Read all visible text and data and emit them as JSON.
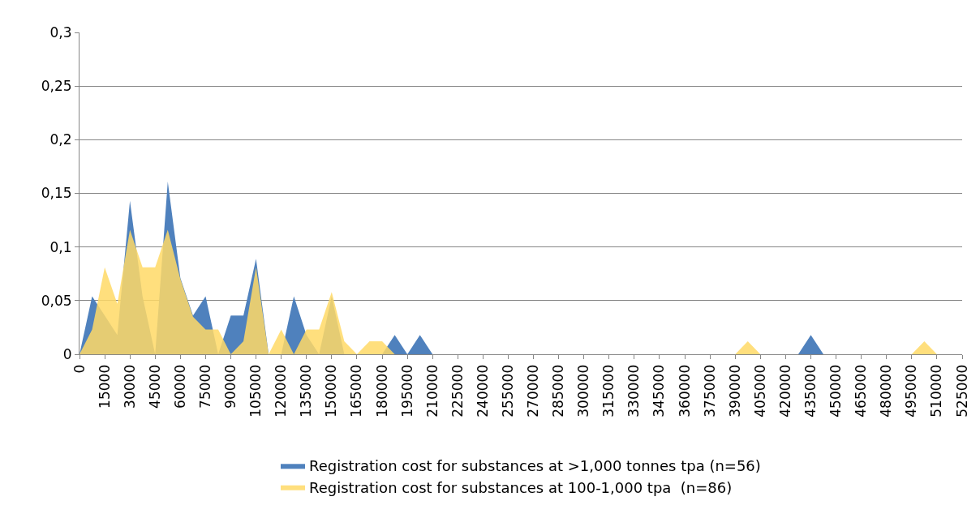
{
  "chart_data": {
    "type": "area",
    "categories": [
      "0",
      null,
      "15000",
      null,
      "30000",
      null,
      "45000",
      null,
      "60000",
      null,
      "75000",
      null,
      "90000",
      null,
      "105000",
      null,
      "120000",
      null,
      "135000",
      null,
      "150000",
      null,
      "165000",
      null,
      "180000",
      null,
      "195000",
      null,
      "210000",
      null,
      "225000",
      null,
      "240000",
      null,
      "255000",
      null,
      "270000",
      null,
      "285000",
      null,
      "300000",
      null,
      "315000",
      null,
      "330000",
      null,
      "345000",
      null,
      "360000",
      null,
      "375000",
      null,
      "390000",
      null,
      "405000",
      null,
      "420000",
      null,
      "435000",
      null,
      "450000",
      null,
      "465000",
      null,
      "480000",
      null,
      "495000",
      null,
      "510000",
      null,
      "525000"
    ],
    "series": [
      {
        "name": "Registration cost for substances at >1,000 tonnes tpa (n=56)",
        "color": "#4f81bd",
        "values": [
          0,
          0.054,
          0.036,
          0.018,
          0.143,
          0.054,
          0,
          0.161,
          0.071,
          0.036,
          0.054,
          0,
          0.036,
          0.036,
          0.089,
          0,
          0,
          0.054,
          0.018,
          0,
          0.054,
          0,
          0,
          0,
          0,
          0.018,
          0,
          0.018,
          0,
          0,
          0,
          0,
          0,
          0,
          0,
          0,
          0,
          0,
          0,
          0,
          0,
          0,
          0,
          0,
          0,
          0,
          0,
          0,
          0,
          0,
          0,
          0,
          0,
          0,
          0,
          0,
          0,
          0,
          0.018,
          0,
          0,
          0,
          0,
          0,
          0,
          0,
          0,
          0,
          0,
          0,
          0
        ]
      },
      {
        "name": "Registration cost for substances at 100-1,000 tpa  (n=86)",
        "color": "#ffd966",
        "values": [
          0,
          0.023,
          0.081,
          0.047,
          0.116,
          0.081,
          0.081,
          0.116,
          0.07,
          0.035,
          0.023,
          0.023,
          0,
          0.012,
          0.081,
          0,
          0.023,
          0,
          0.023,
          0.023,
          0.058,
          0.012,
          0,
          0.012,
          0.012,
          0,
          0,
          0,
          0,
          0,
          0,
          0,
          0,
          0,
          0,
          0,
          0,
          0,
          0,
          0,
          0,
          0,
          0,
          0,
          0,
          0,
          0,
          0,
          0,
          0,
          0,
          0,
          0,
          0.012,
          0,
          0,
          0,
          0,
          0,
          0,
          0,
          0,
          0,
          0,
          0,
          0,
          0,
          0.012,
          0,
          0,
          0
        ]
      }
    ],
    "ylim": [
      0,
      0.3
    ],
    "yticks": [
      0,
      {
        "value": 0.05,
        "label": "0,05"
      },
      {
        "value": 0.1,
        "label": "0,1"
      },
      {
        "value": 0.15,
        "label": "0,15"
      },
      {
        "value": 0.2,
        "label": "0,2"
      },
      {
        "value": 0.25,
        "label": "0,25"
      },
      {
        "value": 0.3,
        "label": "0,3"
      }
    ],
    "grid": "y",
    "legend": "bottom"
  }
}
